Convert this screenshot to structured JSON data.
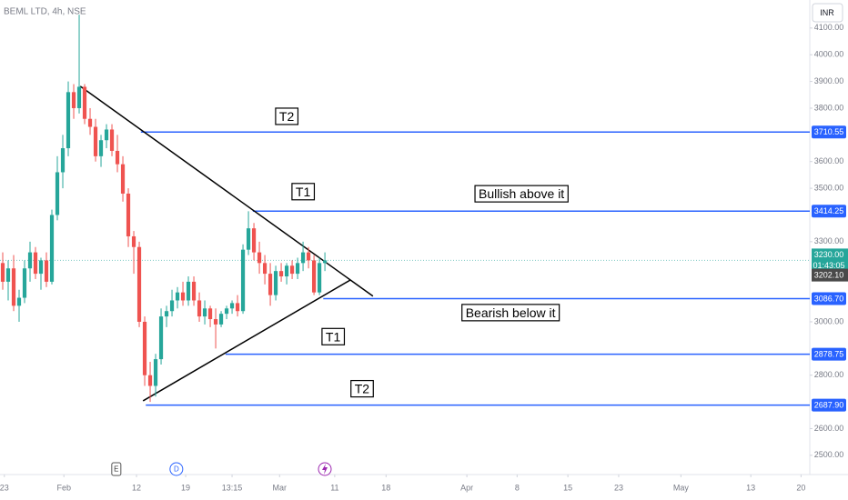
{
  "chart_data": {
    "type": "candlestick",
    "title": "BEML LTD, 4h, NSE",
    "currency": "INR",
    "up_color": "#26a69a",
    "down_color": "#ef5350",
    "open": [
      3220,
      3150,
      3200,
      3060,
      3090,
      3200,
      3260,
      3180,
      3230,
      3150,
      3400,
      3560,
      3650,
      3860,
      3800,
      3880,
      3760,
      3730,
      3620,
      3680,
      3720,
      3640,
      3590,
      3480,
      3320,
      3280,
      3000,
      2800,
      2760,
      2860,
      3020,
      3040,
      3080,
      3110,
      3080,
      3150,
      3080,
      3020,
      3050,
      3010,
      2990,
      3030,
      3050,
      3070,
      3040,
      3270,
      3350,
      3260,
      3220,
      3180,
      3100,
      3190,
      3170,
      3210,
      3180,
      3220,
      3260,
      3230,
      3110,
      3220
    ],
    "high": [
      3260,
      3230,
      3250,
      3120,
      3230,
      3300,
      3280,
      3240,
      3260,
      3420,
      3620,
      3700,
      3900,
      3890,
      4150,
      3890,
      3800,
      3760,
      3700,
      3740,
      3740,
      3700,
      3620,
      3500,
      3340,
      3300,
      3020,
      2850,
      2880,
      3050,
      3060,
      3120,
      3130,
      3150,
      3170,
      3170,
      3110,
      3080,
      3060,
      3050,
      3040,
      3060,
      3080,
      3100,
      3290,
      3414,
      3370,
      3300,
      3250,
      3220,
      3210,
      3220,
      3220,
      3230,
      3240,
      3300,
      3280,
      3250,
      3240,
      3260
    ],
    "low": [
      3120,
      3080,
      3040,
      3000,
      3070,
      3150,
      3160,
      3120,
      3130,
      3140,
      3380,
      3500,
      3620,
      3760,
      3780,
      3740,
      3700,
      3600,
      3580,
      3650,
      3620,
      3560,
      3450,
      3280,
      3180,
      2980,
      2760,
      2700,
      2720,
      2840,
      2980,
      3020,
      3050,
      3060,
      3060,
      3060,
      3000,
      2990,
      2980,
      2900,
      2980,
      3010,
      3030,
      3020,
      3030,
      3250,
      3230,
      3180,
      3140,
      3060,
      3080,
      3150,
      3140,
      3160,
      3160,
      3190,
      3200,
      3100,
      3100,
      3190
    ],
    "close": [
      3150,
      3200,
      3060,
      3090,
      3200,
      3260,
      3180,
      3230,
      3150,
      3400,
      3560,
      3650,
      3860,
      3800,
      3880,
      3760,
      3730,
      3620,
      3680,
      3720,
      3640,
      3590,
      3480,
      3320,
      3280,
      3000,
      2800,
      2760,
      2860,
      3020,
      3040,
      3080,
      3110,
      3080,
      3150,
      3080,
      3020,
      3050,
      3010,
      2990,
      3030,
      3050,
      3070,
      3040,
      3270,
      3350,
      3260,
      3220,
      3180,
      3100,
      3190,
      3170,
      3210,
      3180,
      3220,
      3260,
      3230,
      3110,
      3220,
      3230
    ],
    "xlim": [
      -0.5,
      147.8
    ],
    "xticks": [
      {
        "value": 0.3,
        "label": "23"
      },
      {
        "value": 11.2,
        "label": "Feb"
      },
      {
        "value": 24.5,
        "label": "12"
      },
      {
        "value": 33.5,
        "label": "19"
      },
      {
        "value": 42,
        "label": "13:15"
      },
      {
        "value": 50.7,
        "label": "Mar"
      },
      {
        "value": 60.8,
        "label": "11"
      },
      {
        "value": 70.2,
        "label": "18"
      },
      {
        "value": 85,
        "label": "Apr"
      },
      {
        "value": 94.2,
        "label": "8"
      },
      {
        "value": 103.5,
        "label": "15"
      },
      {
        "value": 112.8,
        "label": "23"
      },
      {
        "value": 124.2,
        "label": "May"
      },
      {
        "value": 137,
        "label": "13"
      },
      {
        "value": 146.2,
        "label": "20"
      }
    ],
    "ylim": [
      2428,
      4205
    ],
    "yticks": [
      {
        "value": 4100,
        "label": "4100.00"
      },
      {
        "value": 4000,
        "label": "4000.00"
      },
      {
        "value": 3900,
        "label": "3900.00"
      },
      {
        "value": 3800,
        "label": "3800.00"
      },
      {
        "value": 3600,
        "label": "3600.00"
      },
      {
        "value": 3500,
        "label": "3500.00"
      },
      {
        "value": 3300,
        "label": "3300.00"
      },
      {
        "value": 3000,
        "label": "3000.00"
      },
      {
        "value": 2800,
        "label": "2800.00"
      },
      {
        "value": 2600,
        "label": "2600.00"
      },
      {
        "value": 2500,
        "label": "2500.00"
      }
    ],
    "level_color": "#2962ff",
    "levels": [
      {
        "value": 3710.55,
        "label": "3710.55",
        "x_start": 25.3
      },
      {
        "value": 3414.25,
        "label": "3414.25",
        "x_start": 45.8
      },
      {
        "value": 3086.7,
        "label": "3086.70",
        "x_start": 58.7
      },
      {
        "value": 2878.75,
        "label": "2878.75",
        "x_start": 40.8
      },
      {
        "value": 2687.9,
        "label": "2687.90",
        "x_start": 26.2
      }
    ],
    "trendlines": [
      {
        "x": [
          14.2,
          67.8
        ],
        "y": [
          3882,
          3096
        ]
      },
      {
        "x": [
          25.7,
          63.7
        ],
        "y": [
          2704,
          3157
        ]
      }
    ],
    "last_price": {
      "value": 3230,
      "label": "3230.00",
      "countdown": "01:43:05"
    },
    "marker_price": {
      "value": 3202.1,
      "label": "3202.10"
    },
    "annotations": [
      {
        "text": "T2",
        "x": 52,
        "y": 3765
      },
      {
        "text": "T1",
        "x": 55,
        "y": 3483
      },
      {
        "text": "Bullish above it",
        "x": 95,
        "y": 3475
      },
      {
        "text": "Bearish below it",
        "x": 93,
        "y": 3030
      },
      {
        "text": "T1",
        "x": 60.5,
        "y": 2940
      },
      {
        "text": "T2",
        "x": 65.8,
        "y": 2745
      }
    ],
    "events": [
      {
        "label": "E",
        "x": 20.8
      },
      {
        "label": "D",
        "x": 31.8
      }
    ]
  }
}
